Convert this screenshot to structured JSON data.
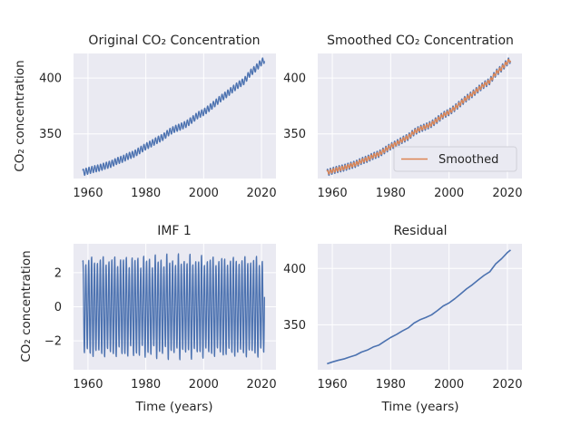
{
  "chart_data": [
    {
      "id": "original",
      "type": "line",
      "title": "Original CO₂ Concentration",
      "xlabel": "",
      "ylabel": "CO₂ concentration",
      "xlim": [
        1955,
        2025
      ],
      "ylim": [
        310,
        422
      ],
      "xticks": [
        1960,
        1980,
        2000,
        2020
      ],
      "yticks": [
        350,
        400
      ],
      "grid": true,
      "series": [
        {
          "color": "#4c72b0",
          "x": [
            1958.2,
            1960,
            1962,
            1964,
            1966,
            1968,
            1970,
            1972,
            1974,
            1976,
            1978,
            1980,
            1982,
            1984,
            1986,
            1988,
            1990,
            1992,
            1994,
            1996,
            1998,
            2000,
            2002,
            2004,
            2006,
            2008,
            2010,
            2012,
            2014,
            2016,
            2018,
            2020,
            2021.1
          ],
          "y": [
            315.3,
            316.9,
            318.4,
            319.6,
            321.4,
            323.0,
            325.7,
            327.5,
            330.2,
            332.0,
            335.4,
            338.7,
            341.4,
            344.5,
            347.2,
            351.5,
            354.4,
            356.4,
            358.8,
            362.6,
            366.7,
            369.4,
            373.2,
            377.5,
            381.9,
            385.6,
            389.9,
            393.9,
            397.2,
            404.2,
            408.7,
            414.2,
            416.5
          ],
          "seasonal_amplitude": 3
        }
      ]
    },
    {
      "id": "smoothed",
      "type": "line",
      "title": "Smoothed CO₂ Concentration",
      "xlabel": "",
      "ylabel": "",
      "xlim": [
        1955,
        2025
      ],
      "ylim": [
        310,
        422
      ],
      "xticks": [
        1960,
        1980,
        2000,
        2020
      ],
      "yticks": [
        350,
        400
      ],
      "grid": true,
      "legend": {
        "placement": "lower-right",
        "entries": [
          "Smoothed"
        ]
      },
      "series": [
        {
          "color": "#4c72b0",
          "x": [
            1958.2,
            1960,
            1962,
            1964,
            1966,
            1968,
            1970,
            1972,
            1974,
            1976,
            1978,
            1980,
            1982,
            1984,
            1986,
            1988,
            1990,
            1992,
            1994,
            1996,
            1998,
            2000,
            2002,
            2004,
            2006,
            2008,
            2010,
            2012,
            2014,
            2016,
            2018,
            2020,
            2021.1
          ],
          "y": [
            315.3,
            316.9,
            318.4,
            319.6,
            321.4,
            323.0,
            325.7,
            327.5,
            330.2,
            332.0,
            335.4,
            338.7,
            341.4,
            344.5,
            347.2,
            351.5,
            354.4,
            356.4,
            358.8,
            362.6,
            366.7,
            369.4,
            373.2,
            377.5,
            381.9,
            385.6,
            389.9,
            393.9,
            397.2,
            404.2,
            408.7,
            414.2,
            416.5
          ],
          "seasonal_amplitude": 3
        },
        {
          "name": "Smoothed",
          "color": "#dd8452",
          "x": [
            1958.2,
            1960,
            1962,
            1964,
            1966,
            1968,
            1970,
            1972,
            1974,
            1976,
            1978,
            1980,
            1982,
            1984,
            1986,
            1988,
            1990,
            1992,
            1994,
            1996,
            1998,
            2000,
            2002,
            2004,
            2006,
            2008,
            2010,
            2012,
            2014,
            2016,
            2018,
            2020,
            2021.1
          ],
          "y": [
            315.3,
            316.9,
            318.4,
            319.6,
            321.4,
            323.0,
            325.7,
            327.5,
            330.2,
            332.0,
            335.4,
            338.7,
            341.4,
            344.5,
            347.2,
            351.5,
            354.4,
            356.4,
            358.8,
            362.6,
            366.7,
            369.4,
            373.2,
            377.5,
            381.9,
            385.6,
            389.9,
            393.9,
            397.2,
            404.2,
            408.7,
            414.2,
            416.5
          ],
          "seasonal_amplitude": 1.8
        }
      ]
    },
    {
      "id": "imf1",
      "type": "line",
      "title": "IMF 1",
      "xlabel": "Time (years)",
      "ylabel": "CO₂ concentration",
      "xlim": [
        1955,
        2025
      ],
      "ylim": [
        -3.7,
        3.7
      ],
      "xticks": [
        1960,
        1980,
        2000,
        2020
      ],
      "yticks": [
        -2,
        0,
        2
      ],
      "grid": true,
      "series": [
        {
          "color": "#4c72b0",
          "x_start": 1958.2,
          "x_end": 2021.1,
          "period_years": 1,
          "amplitude_range": [
            2.3,
            3.2
          ]
        }
      ]
    },
    {
      "id": "residual",
      "type": "line",
      "title": "Residual",
      "xlabel": "Time (years)",
      "ylabel": "",
      "xlim": [
        1955,
        2025
      ],
      "ylim": [
        310,
        422
      ],
      "xticks": [
        1960,
        1980,
        2000,
        2020
      ],
      "yticks": [
        350,
        400
      ],
      "grid": true,
      "series": [
        {
          "color": "#4c72b0",
          "x": [
            1958.2,
            1960,
            1962,
            1964,
            1966,
            1968,
            1970,
            1972,
            1974,
            1976,
            1978,
            1980,
            1982,
            1984,
            1986,
            1988,
            1990,
            1992,
            1994,
            1996,
            1998,
            2000,
            2002,
            2004,
            2006,
            2008,
            2010,
            2012,
            2014,
            2016,
            2018,
            2020,
            2021.1
          ],
          "y": [
            315.3,
            316.9,
            318.4,
            319.6,
            321.4,
            323.0,
            325.7,
            327.5,
            330.2,
            332.0,
            335.4,
            338.7,
            341.4,
            344.5,
            347.2,
            351.5,
            354.4,
            356.4,
            358.8,
            362.6,
            366.7,
            369.4,
            373.2,
            377.5,
            381.9,
            385.6,
            389.9,
            393.9,
            397.2,
            404.2,
            408.7,
            414.2,
            416.5
          ]
        }
      ]
    }
  ],
  "style": {
    "axes_background": "#eaeaf2",
    "grid_color": "#ffffff",
    "text_color": "#262626"
  }
}
